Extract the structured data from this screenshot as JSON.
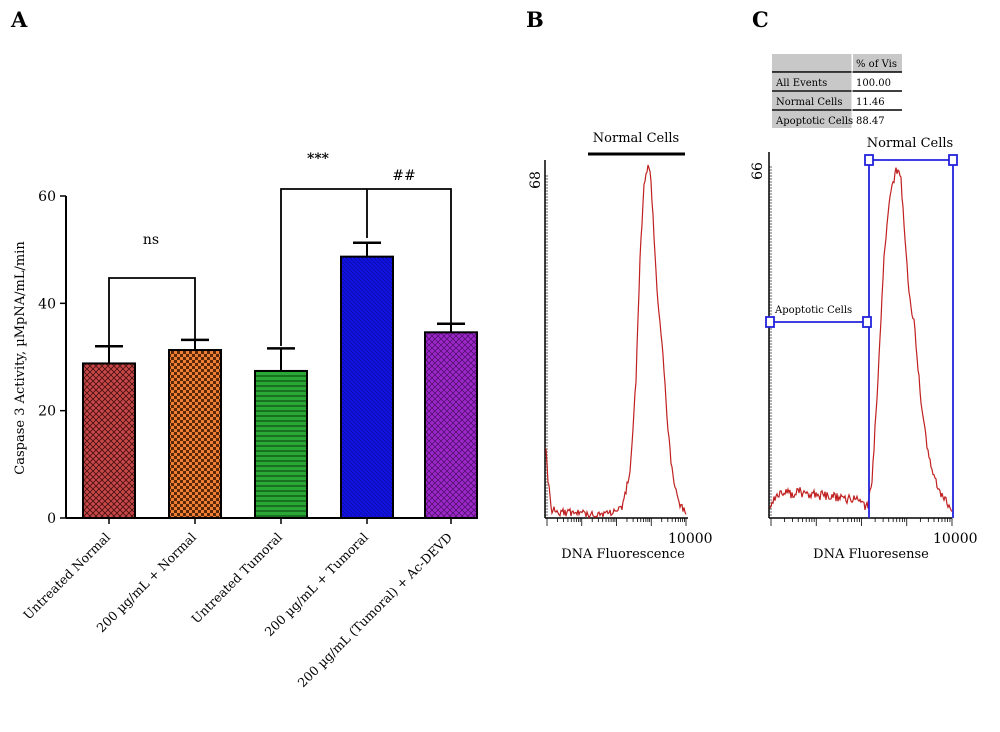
{
  "panels": {
    "a": "A",
    "b": "B",
    "c": "C"
  },
  "chart_data": [
    {
      "type": "bar",
      "title": "",
      "ylabel": "Caspase 3 Activity, µMpNA/mL/min",
      "xlabel": "",
      "ylim": [
        0,
        60
      ],
      "yticks": [
        "0",
        "20",
        "40",
        "60"
      ],
      "categories": [
        "Untreated Normal",
        "200 µg/mL + Normal",
        "Untreated Tumoral",
        "200 µg/mL + Tumoral",
        "200 µg/mL (Tumoral) + Ac-DEVD"
      ],
      "values": [
        28.8,
        31.3,
        27.4,
        48.7,
        34.6
      ],
      "errors": [
        3.2,
        1.9,
        4.2,
        2.6,
        1.6
      ],
      "colors": [
        "#c84848",
        "#f07e34",
        "#2aa836",
        "#1111e0",
        "#9b27c8"
      ],
      "annotations": [
        "ns",
        "***",
        "##"
      ]
    },
    {
      "type": "line",
      "title": "",
      "xlabel": "DNA Fluorescence",
      "x_tick_label": "10000",
      "y_tick_label": "68",
      "gate_label": "Normal Cells",
      "color": "#c02020"
    },
    {
      "type": "line",
      "title": "",
      "xlabel": "DNA Fluoresense",
      "x_tick_label": "10000",
      "y_tick_label": "66",
      "gate_labels": [
        "Normal Cells",
        "Apoptotic Cells"
      ],
      "color": "#c02020",
      "gate_color": "#2222dd",
      "table": {
        "header": [
          "",
          "% of Vis"
        ],
        "rows": [
          [
            "All Events",
            "100.00"
          ],
          [
            "Normal Cells",
            "11.46"
          ],
          [
            "Apoptotic Cells",
            "88.47"
          ]
        ]
      }
    }
  ]
}
